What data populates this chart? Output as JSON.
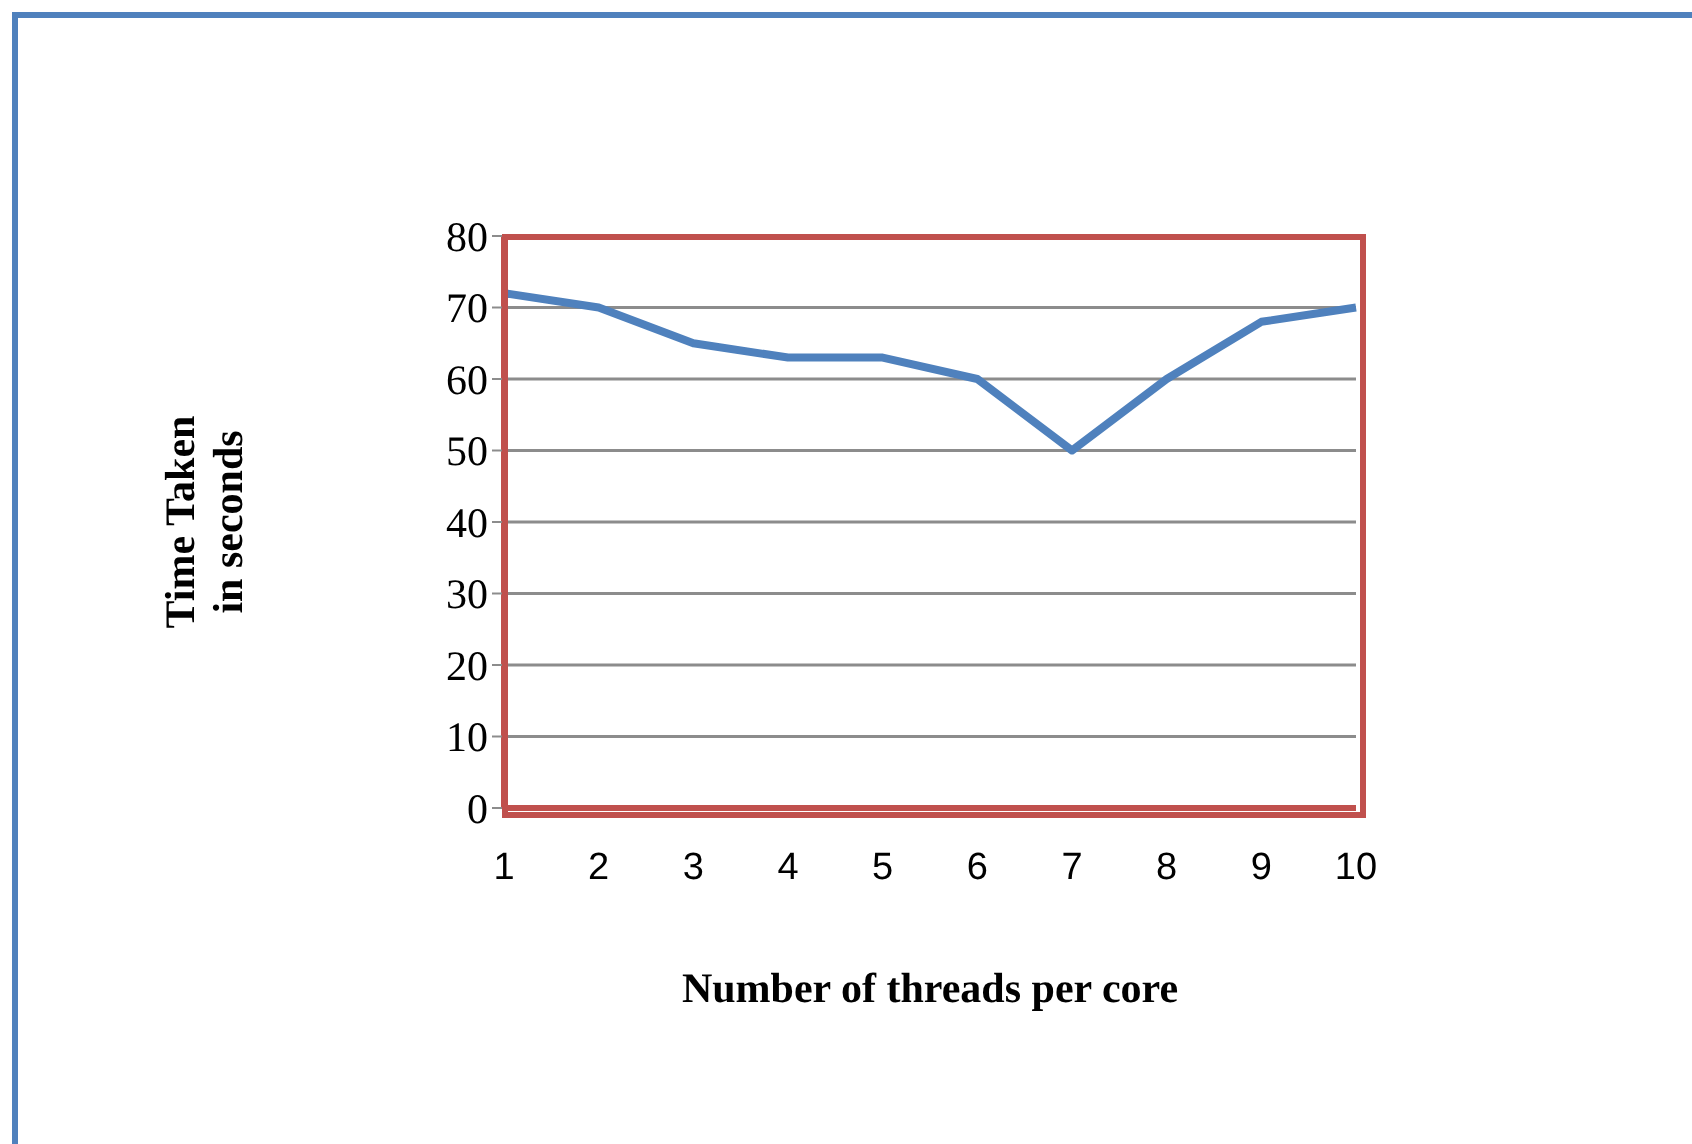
{
  "chart_data": {
    "type": "line",
    "xlabel": "Number of threads per core",
    "ylabel": "Time Taken\nin seconds",
    "categories": [
      "1",
      "2",
      "3",
      "4",
      "5",
      "6",
      "7",
      "8",
      "9",
      "10"
    ],
    "series": [
      {
        "color": "#4f81bd",
        "values": [
          72,
          70,
          65,
          63,
          63,
          60,
          50,
          60,
          68,
          70
        ]
      }
    ],
    "ylim": [
      0,
      80
    ],
    "yticks": [
      0,
      10,
      20,
      30,
      40,
      50,
      60,
      70,
      80
    ],
    "grid": "y",
    "legend": false,
    "marker": "none",
    "line_style": "solid"
  }
}
